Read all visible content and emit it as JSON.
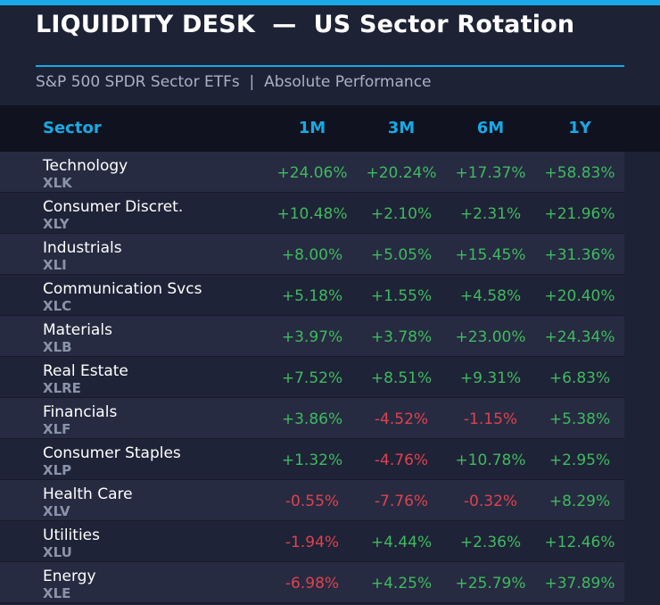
{
  "header": {
    "title": "LIQUIDITY DESK  —  US Sector Rotation",
    "subtitle": "S&P 500 SPDR Sector ETFs  |  Absolute Performance"
  },
  "colors": {
    "accent": "#19a9e6",
    "positive": "#3fba5e",
    "negative": "#e0414e"
  },
  "chart_data": {
    "type": "table",
    "title": "LIQUIDITY DESK  —  US Sector Rotation",
    "subtitle": "S&P 500 SPDR Sector ETFs  |  Absolute Performance",
    "columns": [
      "Sector",
      "1M",
      "3M",
      "6M",
      "1Y"
    ],
    "rows": [
      {
        "sector": "Technology",
        "ticker": "XLK",
        "values": [
          "+24.06%",
          "+20.24%",
          "+17.37%",
          "+58.83%"
        ]
      },
      {
        "sector": "Consumer Discret.",
        "ticker": "XLY",
        "values": [
          "+10.48%",
          "+2.10%",
          "+2.31%",
          "+21.96%"
        ]
      },
      {
        "sector": "Industrials",
        "ticker": "XLI",
        "values": [
          "+8.00%",
          "+5.05%",
          "+15.45%",
          "+31.36%"
        ]
      },
      {
        "sector": "Communication Svcs",
        "ticker": "XLC",
        "values": [
          "+5.18%",
          "+1.55%",
          "+4.58%",
          "+20.40%"
        ]
      },
      {
        "sector": "Materials",
        "ticker": "XLB",
        "values": [
          "+3.97%",
          "+3.78%",
          "+23.00%",
          "+24.34%"
        ]
      },
      {
        "sector": "Real Estate",
        "ticker": "XLRE",
        "values": [
          "+7.52%",
          "+8.51%",
          "+9.31%",
          "+6.83%"
        ]
      },
      {
        "sector": "Financials",
        "ticker": "XLF",
        "values": [
          "+3.86%",
          "-4.52%",
          "-1.15%",
          "+5.38%"
        ]
      },
      {
        "sector": "Consumer Staples",
        "ticker": "XLP",
        "values": [
          "+1.32%",
          "-4.76%",
          "+10.78%",
          "+2.95%"
        ]
      },
      {
        "sector": "Health Care",
        "ticker": "XLV",
        "values": [
          "-0.55%",
          "-7.76%",
          "-0.32%",
          "+8.29%"
        ]
      },
      {
        "sector": "Utilities",
        "ticker": "XLU",
        "values": [
          "-1.94%",
          "+4.44%",
          "+2.36%",
          "+12.46%"
        ]
      },
      {
        "sector": "Energy",
        "ticker": "XLE",
        "values": [
          "-6.98%",
          "+4.25%",
          "+25.79%",
          "+37.89%"
        ]
      }
    ]
  }
}
